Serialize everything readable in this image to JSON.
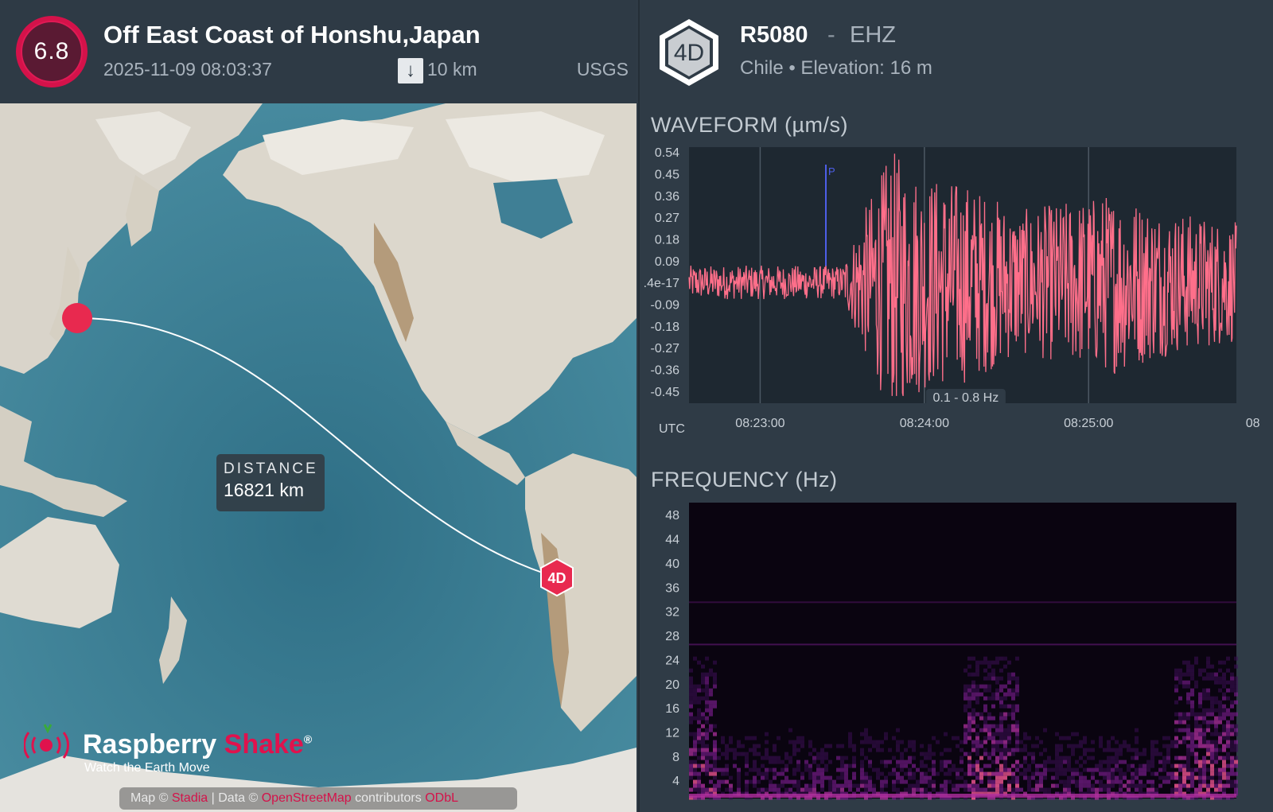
{
  "quake": {
    "magnitude": "6.8",
    "title": "Off East Coast of Honshu,Japan",
    "datetime": "2025-11-09 08:03:37",
    "depth": "10 km",
    "source": "USGS"
  },
  "map": {
    "distance_label": "DISTANCE",
    "distance_value": "16821 km",
    "station_marker": "4D",
    "logo_name_1": "Raspberry",
    "logo_name_2": "Shake",
    "logo_reg": "®",
    "logo_tagline": "Watch the Earth Move",
    "attribution": {
      "map_prefix": "Map ©",
      "map_link": "Stadia",
      "data_prefix": "| Data ©",
      "data_link": "OpenStreetMap",
      "suffix": "contributors",
      "license_link": "ODbL"
    },
    "colors": {
      "ocean": "#3f7f95",
      "land": "#dcd8cf",
      "epicenter": "#e8294f",
      "path": "#ffffff"
    }
  },
  "station": {
    "badge": "4D",
    "id": "R5080",
    "separator": "-",
    "channel": "EHZ",
    "location": "Chile • Elevation: 16 m"
  },
  "waveform": {
    "title": "WAVEFORM (µm/s)",
    "filter": "0.1 - 0.8 Hz",
    "utc_label": "UTC",
    "p_label": "P"
  },
  "frequency": {
    "title": "FREQUENCY (Hz)"
  },
  "chart_data": [
    {
      "type": "line",
      "title": "WAVEFORM (µm/s)",
      "ylabel": "µm/s",
      "xlabel": "UTC",
      "ylim": [
        -0.5,
        0.56
      ],
      "yticks": [
        "0.54",
        "0.45",
        "0.36",
        "0.27",
        "0.18",
        "0.09",
        ".4e-17",
        "-0.09",
        "-0.18",
        "-0.27",
        "-0.36",
        "-0.45"
      ],
      "ytick_values": [
        0.54,
        0.45,
        0.36,
        0.27,
        0.18,
        0.09,
        0,
        -0.09,
        -0.18,
        -0.27,
        -0.36,
        -0.45
      ],
      "xticks": [
        "08:23:00",
        "08:24:00",
        "08:25:00",
        "08"
      ],
      "xtick_values": [
        0,
        60,
        120,
        180
      ],
      "xlim": [
        -26,
        174
      ],
      "p_arrival_s": 24,
      "series": [
        {
          "color": "#ff6f8a",
          "envelope": [
            {
              "t": -26,
              "amp": 0.07
            },
            {
              "t": 30,
              "amp": 0.07
            },
            {
              "t": 38,
              "amp": 0.3
            },
            {
              "t": 48,
              "amp": 0.55
            },
            {
              "t": 60,
              "amp": 0.45
            },
            {
              "t": 75,
              "amp": 0.42
            },
            {
              "t": 95,
              "amp": 0.3
            },
            {
              "t": 130,
              "amp": 0.38
            },
            {
              "t": 150,
              "amp": 0.3
            },
            {
              "t": 174,
              "amp": 0.25
            }
          ]
        }
      ]
    },
    {
      "type": "heatmap",
      "title": "FREQUENCY (Hz)",
      "ylabel": "Hz",
      "ylim": [
        1,
        50
      ],
      "yticks": [
        "48",
        "44",
        "40",
        "36",
        "32",
        "28",
        "24",
        "20",
        "16",
        "12",
        "8",
        "4"
      ],
      "ytick_values": [
        48,
        44,
        40,
        36,
        32,
        28,
        24,
        20,
        16,
        12,
        8,
        4
      ],
      "colormap": [
        "#0a0410",
        "#3b0f54",
        "#7a1d8e",
        "#b0309f",
        "#e0508a"
      ],
      "bands": [
        {
          "freq": 33.5,
          "intensity": 0.35
        },
        {
          "freq": 26.5,
          "intensity": 0.5
        }
      ]
    }
  ]
}
